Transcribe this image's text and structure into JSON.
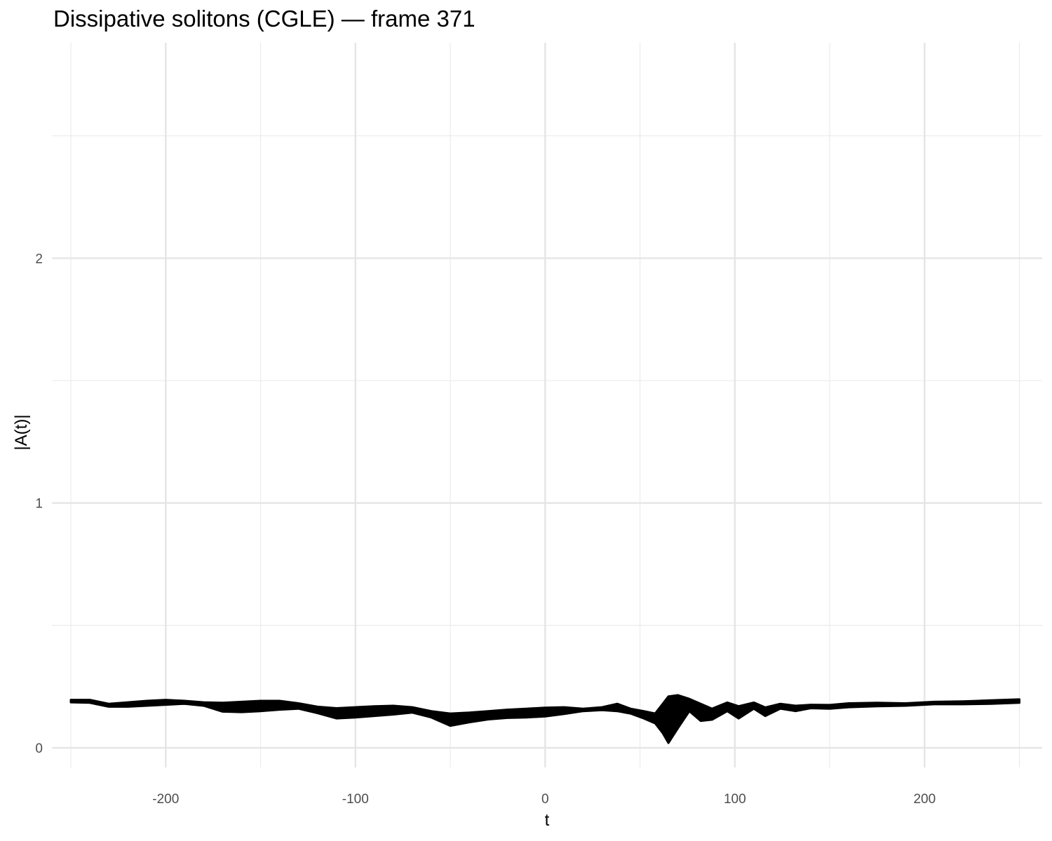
{
  "chart_data": {
    "type": "area",
    "title": "Dissipative solitons (CGLE) — frame 371",
    "xlabel": "t",
    "ylabel": "|A(t)|",
    "xlim": [
      -260,
      262
    ],
    "ylim": [
      -0.08,
      2.88
    ],
    "x_ticks": [
      -200,
      -100,
      0,
      100,
      200
    ],
    "x_tick_labels": [
      "-200",
      "-100",
      "0",
      "100",
      "200"
    ],
    "y_ticks": [
      0,
      1,
      2
    ],
    "y_tick_labels": [
      "0",
      "1",
      "2"
    ],
    "grid": true,
    "legend": "none",
    "series": [
      {
        "color": "#000000",
        "points": [
          {
            "t": -250,
            "lo": 0.186,
            "hi": 0.196
          },
          {
            "t": -240,
            "lo": 0.184,
            "hi": 0.196
          },
          {
            "t": -230,
            "lo": 0.168,
            "hi": 0.18
          },
          {
            "t": -220,
            "lo": 0.168,
            "hi": 0.186
          },
          {
            "t": -210,
            "lo": 0.172,
            "hi": 0.192
          },
          {
            "t": -200,
            "lo": 0.176,
            "hi": 0.196
          },
          {
            "t": -190,
            "lo": 0.18,
            "hi": 0.192
          },
          {
            "t": -180,
            "lo": 0.172,
            "hi": 0.186
          },
          {
            "t": -170,
            "lo": 0.148,
            "hi": 0.184
          },
          {
            "t": -160,
            "lo": 0.146,
            "hi": 0.188
          },
          {
            "t": -150,
            "lo": 0.15,
            "hi": 0.192
          },
          {
            "t": -140,
            "lo": 0.156,
            "hi": 0.192
          },
          {
            "t": -130,
            "lo": 0.16,
            "hi": 0.182
          },
          {
            "t": -120,
            "lo": 0.142,
            "hi": 0.168
          },
          {
            "t": -110,
            "lo": 0.12,
            "hi": 0.162
          },
          {
            "t": -100,
            "lo": 0.124,
            "hi": 0.166
          },
          {
            "t": -90,
            "lo": 0.13,
            "hi": 0.17
          },
          {
            "t": -80,
            "lo": 0.136,
            "hi": 0.172
          },
          {
            "t": -70,
            "lo": 0.144,
            "hi": 0.166
          },
          {
            "t": -60,
            "lo": 0.124,
            "hi": 0.15
          },
          {
            "t": -50,
            "lo": 0.09,
            "hi": 0.14
          },
          {
            "t": -40,
            "lo": 0.104,
            "hi": 0.144
          },
          {
            "t": -30,
            "lo": 0.116,
            "hi": 0.15
          },
          {
            "t": -20,
            "lo": 0.122,
            "hi": 0.156
          },
          {
            "t": -10,
            "lo": 0.124,
            "hi": 0.16
          },
          {
            "t": 0,
            "lo": 0.128,
            "hi": 0.164
          },
          {
            "t": 10,
            "lo": 0.138,
            "hi": 0.166
          },
          {
            "t": 20,
            "lo": 0.15,
            "hi": 0.16
          },
          {
            "t": 30,
            "lo": 0.154,
            "hi": 0.166
          },
          {
            "t": 38,
            "lo": 0.15,
            "hi": 0.18
          },
          {
            "t": 45,
            "lo": 0.14,
            "hi": 0.16
          },
          {
            "t": 52,
            "lo": 0.12,
            "hi": 0.15
          },
          {
            "t": 58,
            "lo": 0.1,
            "hi": 0.14
          },
          {
            "t": 62,
            "lo": 0.06,
            "hi": 0.18
          },
          {
            "t": 65,
            "lo": 0.02,
            "hi": 0.21
          },
          {
            "t": 70,
            "lo": 0.08,
            "hi": 0.215
          },
          {
            "t": 76,
            "lo": 0.15,
            "hi": 0.2
          },
          {
            "t": 82,
            "lo": 0.11,
            "hi": 0.18
          },
          {
            "t": 88,
            "lo": 0.115,
            "hi": 0.16
          },
          {
            "t": 96,
            "lo": 0.15,
            "hi": 0.185
          },
          {
            "t": 102,
            "lo": 0.12,
            "hi": 0.17
          },
          {
            "t": 110,
            "lo": 0.16,
            "hi": 0.185
          },
          {
            "t": 116,
            "lo": 0.13,
            "hi": 0.165
          },
          {
            "t": 124,
            "lo": 0.16,
            "hi": 0.18
          },
          {
            "t": 132,
            "lo": 0.15,
            "hi": 0.172
          },
          {
            "t": 140,
            "lo": 0.162,
            "hi": 0.176
          },
          {
            "t": 150,
            "lo": 0.16,
            "hi": 0.175
          },
          {
            "t": 160,
            "lo": 0.166,
            "hi": 0.182
          },
          {
            "t": 175,
            "lo": 0.17,
            "hi": 0.184
          },
          {
            "t": 190,
            "lo": 0.172,
            "hi": 0.182
          },
          {
            "t": 205,
            "lo": 0.178,
            "hi": 0.188
          },
          {
            "t": 220,
            "lo": 0.178,
            "hi": 0.19
          },
          {
            "t": 235,
            "lo": 0.18,
            "hi": 0.194
          },
          {
            "t": 250,
            "lo": 0.184,
            "hi": 0.198
          }
        ]
      }
    ]
  }
}
